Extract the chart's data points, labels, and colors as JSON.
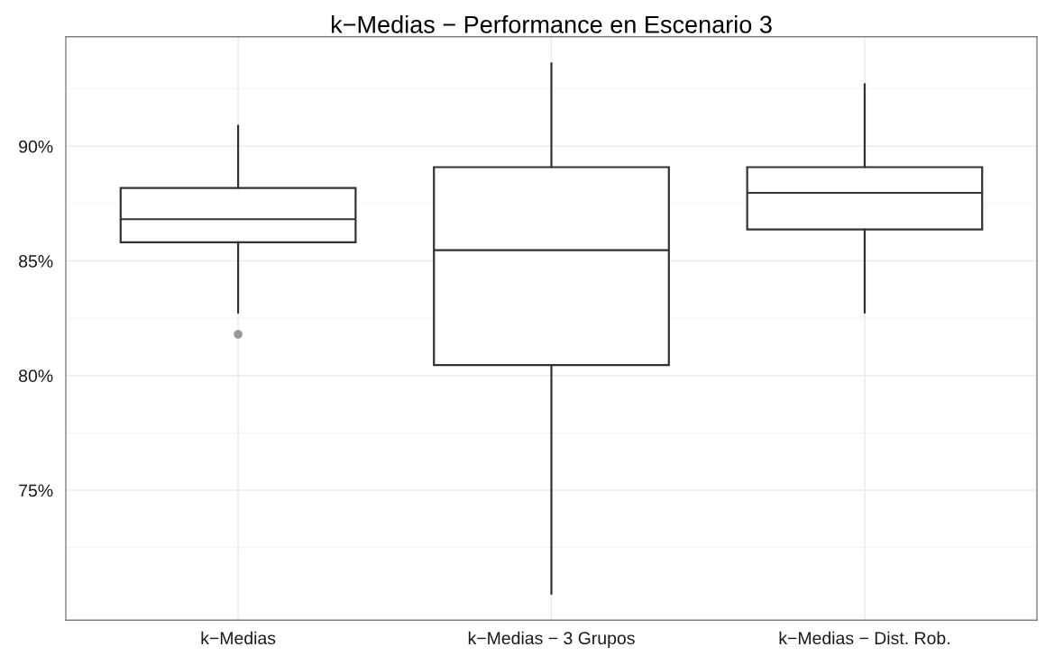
{
  "chart_data": {
    "type": "box",
    "title": "k−Medias − Performance en Escenario 3",
    "categories": [
      "k−Medias",
      "k−Medias − 3 Grupos",
      "k−Medias − Dist. Rob."
    ],
    "color": "#333333",
    "boxes": [
      {
        "low": 82.74,
        "q1": 85.81,
        "median": 86.82,
        "q3": 88.18,
        "high": 90.9,
        "outliers": [
          81.8
        ]
      },
      {
        "low": 70.48,
        "q1": 80.46,
        "median": 85.47,
        "q3": 89.09,
        "high": 93.62
      },
      {
        "low": 82.74,
        "q1": 86.37,
        "median": 87.97,
        "q3": 89.09,
        "high": 92.71
      }
    ],
    "ylim": [
      69.33,
      94.78
    ],
    "yticks": [
      {
        "value": 75,
        "label": "75%"
      },
      {
        "value": 80,
        "label": "80%"
      },
      {
        "value": 85,
        "label": "85%"
      },
      {
        "value": 90,
        "label": "90%"
      }
    ],
    "grid": true
  }
}
